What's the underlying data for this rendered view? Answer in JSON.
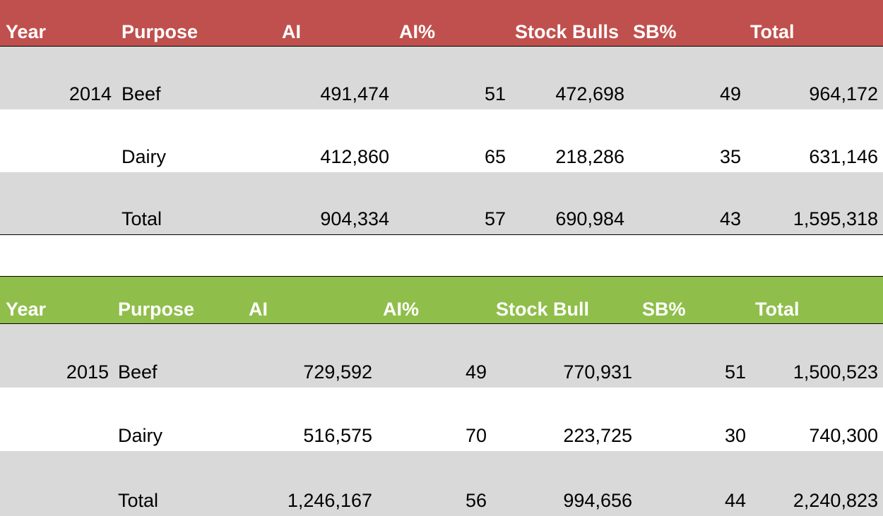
{
  "colors": {
    "header_2014": "#c0504d",
    "header_2015": "#8fbe4a",
    "row_shade": "#d9d9d9",
    "header_text": "#ffffff"
  },
  "tables": [
    {
      "headers": {
        "year": "Year",
        "purpose": "Purpose",
        "ai": "AI",
        "ai_pct": "AI%",
        "stock": "Stock Bulls",
        "sb_pct": "SB%",
        "total": "Total"
      },
      "rows": [
        {
          "year": "2014",
          "purpose": "Beef",
          "ai": "491,474",
          "ai_pct": "51",
          "stock": "472,698",
          "sb_pct": "49",
          "total": "964,172"
        },
        {
          "year": "",
          "purpose": "Dairy",
          "ai": "412,860",
          "ai_pct": "65",
          "stock": "218,286",
          "sb_pct": "35",
          "total": "631,146"
        },
        {
          "year": "",
          "purpose": "Total",
          "ai": "904,334",
          "ai_pct": "57",
          "stock": "690,984",
          "sb_pct": "43",
          "total": "1,595,318"
        }
      ]
    },
    {
      "headers": {
        "year": "Year",
        "purpose": "Purpose",
        "ai": "AI",
        "ai_pct": "AI%",
        "stock": "Stock Bull",
        "sb_pct": "SB%",
        "total": "Total"
      },
      "rows": [
        {
          "year": "2015",
          "purpose": "Beef",
          "ai": "729,592",
          "ai_pct": "49",
          "stock": "770,931",
          "sb_pct": "51",
          "total": "1,500,523"
        },
        {
          "year": "",
          "purpose": "Dairy",
          "ai": "516,575",
          "ai_pct": "70",
          "stock": "223,725",
          "sb_pct": "30",
          "total": "740,300"
        },
        {
          "year": "",
          "purpose": "Total",
          "ai": "1,246,167",
          "ai_pct": "56",
          "stock": "994,656",
          "sb_pct": "44",
          "total": "2,240,823"
        }
      ]
    }
  ]
}
